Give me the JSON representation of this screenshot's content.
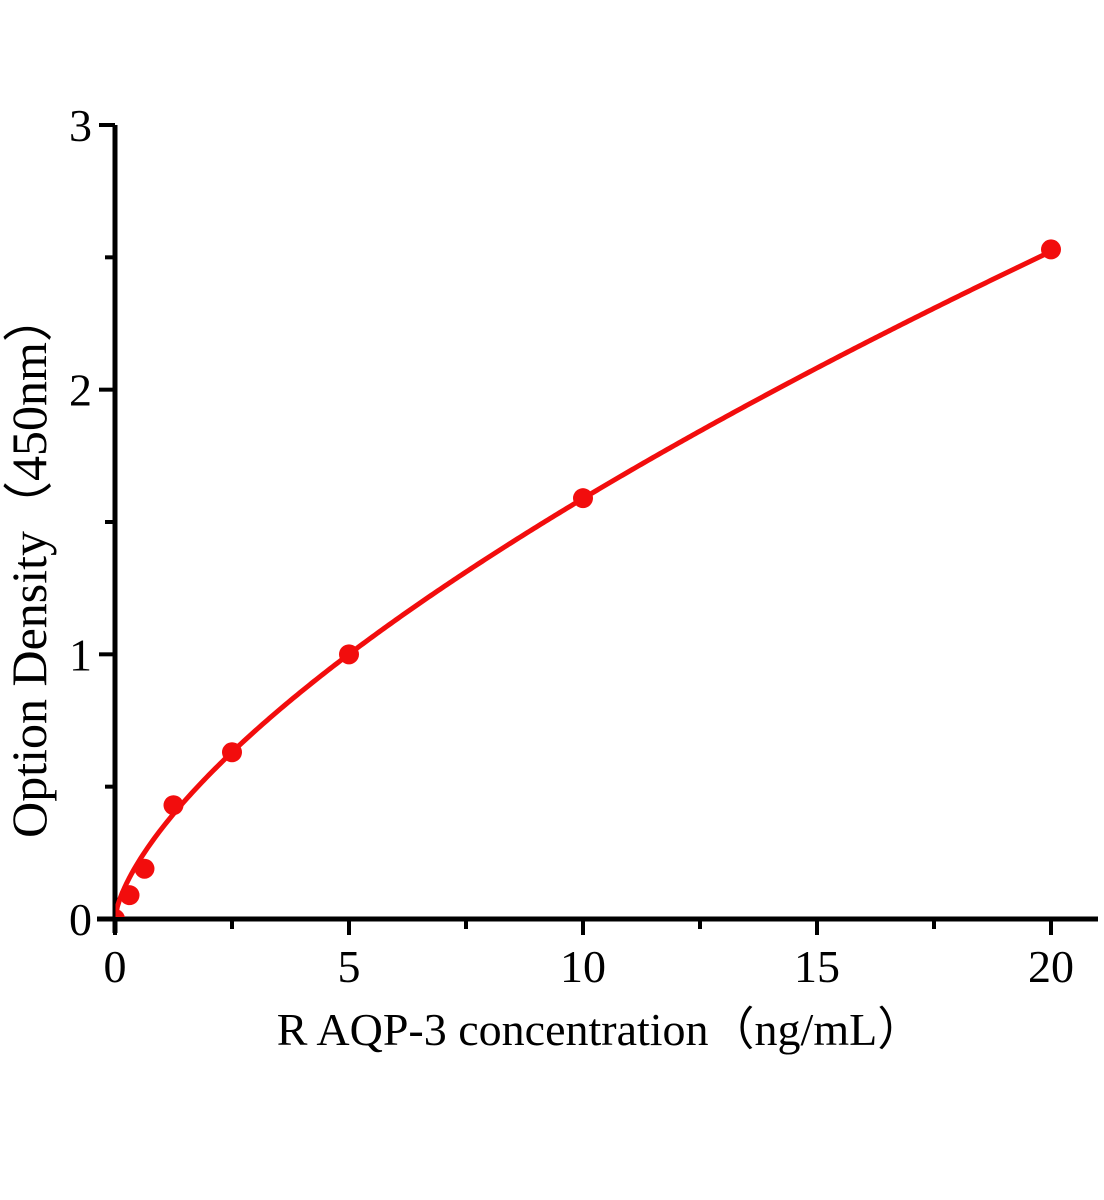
{
  "chart_data": {
    "type": "scatter",
    "title": "",
    "xlabel": "R AQP-3 concentration（ng/mL）",
    "ylabel": "Option Density（450nm）",
    "points": [
      {
        "x": 0,
        "y": 0
      },
      {
        "x": 0.31,
        "y": 0.09
      },
      {
        "x": 0.63,
        "y": 0.19
      },
      {
        "x": 1.25,
        "y": 0.43
      },
      {
        "x": 2.5,
        "y": 0.63
      },
      {
        "x": 5,
        "y": 1.0
      },
      {
        "x": 10,
        "y": 1.59
      },
      {
        "x": 20,
        "y": 2.53
      }
    ],
    "fit_curve": {
      "model": "power",
      "equation": "y = 0.342 * x^0.667",
      "a": 0.342,
      "b": 0.667,
      "x_range": [
        0,
        20
      ]
    },
    "x_axis": {
      "range": [
        0,
        21
      ],
      "major_ticks": [
        0,
        5,
        10,
        15,
        20
      ],
      "major_tick_labels": [
        "0",
        "5",
        "10",
        "15",
        "20"
      ],
      "minor_ticks": [
        2.5,
        7.5,
        12.5,
        17.5
      ]
    },
    "y_axis": {
      "range": [
        0,
        3
      ],
      "major_ticks": [
        0,
        1,
        2,
        3
      ],
      "major_tick_labels": [
        "0",
        "1",
        "2",
        "3"
      ],
      "minor_ticks": [
        0.5,
        1.5,
        2.5
      ]
    },
    "grid": false,
    "legend": "none",
    "marker": "circle",
    "colors": {
      "series": "#f20d0d",
      "axis": "#000000",
      "text": "#000000",
      "background": "#ffffff"
    }
  }
}
